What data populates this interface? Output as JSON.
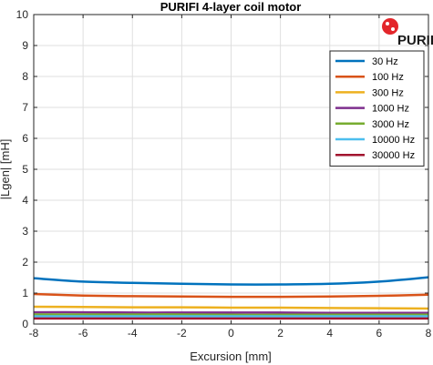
{
  "chart_data": {
    "type": "line",
    "title": "PURIFI 4-layer coil motor",
    "xlabel": "Excursion [mm]",
    "ylabel": "|Lgen| [mH]",
    "xlim": [
      -8,
      8
    ],
    "ylim": [
      0,
      10
    ],
    "xticks": [
      -8,
      -6,
      -4,
      -2,
      0,
      2,
      4,
      6,
      8
    ],
    "yticks": [
      0,
      1,
      2,
      3,
      4,
      5,
      6,
      7,
      8,
      9,
      10
    ],
    "grid": true,
    "legend_position": "top-right",
    "x": [
      -8,
      -6,
      -4,
      -2,
      0,
      2,
      4,
      6,
      8
    ],
    "series": [
      {
        "name": "30 Hz",
        "color": "#0072BD",
        "values": [
          1.48,
          1.37,
          1.33,
          1.3,
          1.28,
          1.28,
          1.3,
          1.37,
          1.51
        ]
      },
      {
        "name": "100 Hz",
        "color": "#D95319",
        "values": [
          0.97,
          0.92,
          0.9,
          0.89,
          0.88,
          0.88,
          0.89,
          0.91,
          0.95
        ]
      },
      {
        "name": "300 Hz",
        "color": "#EDB120",
        "values": [
          0.56,
          0.55,
          0.54,
          0.54,
          0.53,
          0.53,
          0.52,
          0.51,
          0.5
        ]
      },
      {
        "name": "1000 Hz",
        "color": "#7E2F8E",
        "values": [
          0.38,
          0.38,
          0.37,
          0.37,
          0.37,
          0.37,
          0.36,
          0.36,
          0.36
        ]
      },
      {
        "name": "3000 Hz",
        "color": "#77AC30",
        "values": [
          0.31,
          0.31,
          0.31,
          0.31,
          0.3,
          0.3,
          0.3,
          0.3,
          0.3
        ]
      },
      {
        "name": "10000 Hz",
        "color": "#4DBEEE",
        "values": [
          0.25,
          0.25,
          0.25,
          0.25,
          0.25,
          0.25,
          0.25,
          0.25,
          0.25
        ]
      },
      {
        "name": "30000 Hz",
        "color": "#A2142F",
        "values": [
          0.18,
          0.18,
          0.18,
          0.18,
          0.18,
          0.18,
          0.18,
          0.18,
          0.18
        ]
      }
    ]
  },
  "logo": {
    "text": "PURIFI",
    "color": "#E3262B"
  }
}
